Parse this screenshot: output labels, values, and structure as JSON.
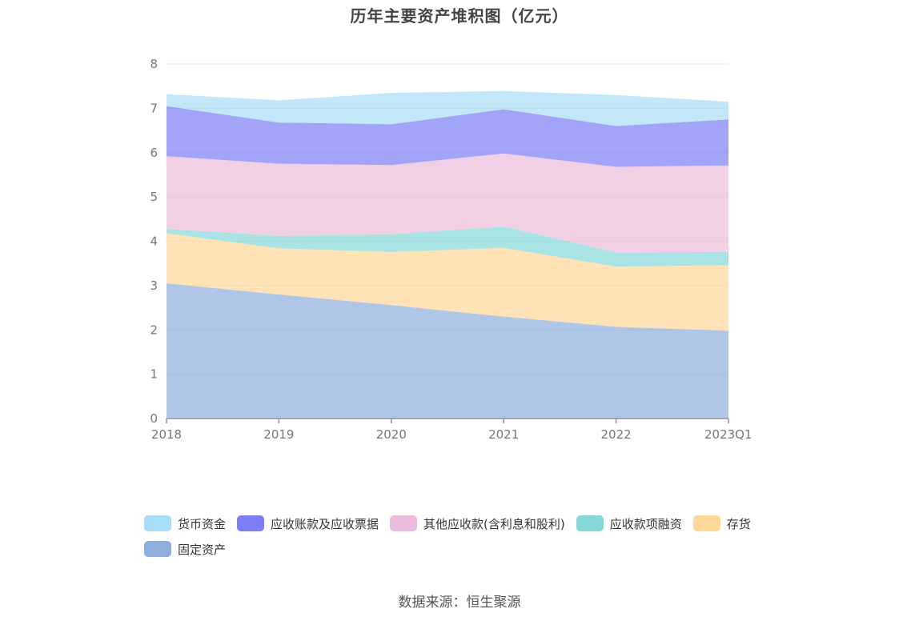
{
  "title": "历年主要资产堆积图（亿元）",
  "source": "数据来源：恒生聚源",
  "chart_data": {
    "type": "area",
    "stacked": true,
    "title": "历年主要资产堆积图（亿元）",
    "categories": [
      "2018",
      "2019",
      "2020",
      "2021",
      "2022",
      "2023Q1"
    ],
    "ylim": [
      0,
      8
    ],
    "yticks": [
      0,
      1,
      2,
      3,
      4,
      5,
      6,
      7,
      8
    ],
    "grid": "horizontal",
    "legend_position": "bottom",
    "series": [
      {
        "name": "固定资产",
        "color": "#8eaedc",
        "values": [
          3.05,
          2.8,
          2.56,
          2.3,
          2.07,
          1.98
        ]
      },
      {
        "name": "存货",
        "color": "#ffd799",
        "values": [
          1.13,
          1.04,
          1.2,
          1.55,
          1.36,
          1.48
        ]
      },
      {
        "name": "应收款项融资",
        "color": "#86d7d7",
        "values": [
          0.1,
          0.28,
          0.4,
          0.48,
          0.32,
          0.3
        ]
      },
      {
        "name": "其他应收款(含利息和股利)",
        "color": "#ebbcdb",
        "values": [
          1.64,
          1.63,
          1.56,
          1.65,
          1.93,
          1.95
        ]
      },
      {
        "name": "应收账款及应收票据",
        "color": "#7b7ef5",
        "values": [
          1.13,
          0.93,
          0.92,
          1.0,
          0.92,
          1.04
        ]
      },
      {
        "name": "货币资金",
        "color": "#a8ddf7",
        "values": [
          0.27,
          0.5,
          0.71,
          0.41,
          0.7,
          0.4
        ]
      }
    ]
  },
  "legend": [
    {
      "label": "货币资金",
      "color": "#a8ddf7"
    },
    {
      "label": "应收账款及应收票据",
      "color": "#7b7ef5"
    },
    {
      "label": "其他应收款(含利息和股利)",
      "color": "#ebbcdb"
    },
    {
      "label": "应收款项融资",
      "color": "#86d7d7"
    },
    {
      "label": "存货",
      "color": "#ffd799"
    },
    {
      "label": "固定资产",
      "color": "#8eaedc"
    }
  ]
}
